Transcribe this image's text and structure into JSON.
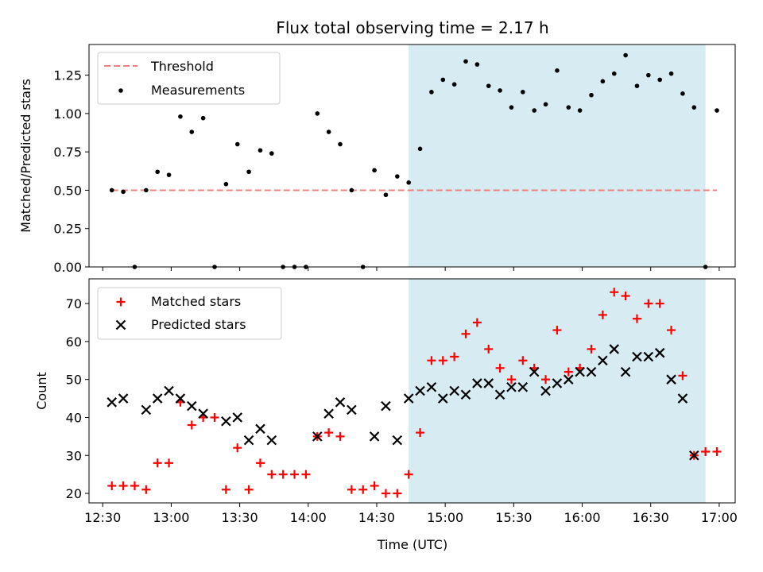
{
  "title": "Flux total observing time = 2.17 h",
  "chart_data": [
    {
      "type": "scatter",
      "ylabel": "Matched/Predicted stars",
      "xlim": [
        "12:24",
        "17:07"
      ],
      "ylim": [
        0,
        1.45
      ],
      "yticks": [
        "0.00",
        "0.25",
        "0.50",
        "0.75",
        "1.00",
        "1.25"
      ],
      "grid": false,
      "legend_position": "upper left",
      "shaded_span": {
        "start": "14:44",
        "end": "16:54",
        "color": "#add8e6"
      },
      "threshold": {
        "name": "Threshold",
        "value": 0.5,
        "x_start": "12:34",
        "x_end": "16:59",
        "color": "#f08080"
      },
      "series": [
        {
          "name": "Measurements",
          "color": "#000000",
          "marker": "dot",
          "x": [
            "12:34",
            "12:39",
            "12:44",
            "12:49",
            "12:54",
            "12:59",
            "13:04",
            "13:09",
            "13:14",
            "13:19",
            "13:24",
            "13:29",
            "13:34",
            "13:39",
            "13:44",
            "13:49",
            "13:54",
            "13:59",
            "14:04",
            "14:09",
            "14:14",
            "14:19",
            "14:24",
            "14:29",
            "14:34",
            "14:39",
            "14:44",
            "14:49",
            "14:54",
            "14:59",
            "15:04",
            "15:09",
            "15:14",
            "15:19",
            "15:24",
            "15:29",
            "15:34",
            "15:39",
            "15:44",
            "15:49",
            "15:54",
            "15:59",
            "16:04",
            "16:09",
            "16:14",
            "16:19",
            "16:24",
            "16:29",
            "16:34",
            "16:39",
            "16:44",
            "16:49",
            "16:54",
            "16:59"
          ],
          "y": [
            0.5,
            0.49,
            0.0,
            0.5,
            0.62,
            0.6,
            0.98,
            0.88,
            0.97,
            0.0,
            0.54,
            0.8,
            0.62,
            0.76,
            0.74,
            0.0,
            0.0,
            0.0,
            1.0,
            0.88,
            0.8,
            0.5,
            0.0,
            0.63,
            0.47,
            0.59,
            0.55,
            0.77,
            1.14,
            1.22,
            1.19,
            1.34,
            1.32,
            1.18,
            1.15,
            1.04,
            1.14,
            1.02,
            1.06,
            1.28,
            1.04,
            1.02,
            1.12,
            1.21,
            1.26,
            1.38,
            1.18,
            1.25,
            1.22,
            1.26,
            1.13,
            1.04,
            0.0,
            1.02
          ]
        }
      ]
    },
    {
      "type": "scatter",
      "xlabel": "Time (UTC)",
      "ylabel": "Count",
      "xlim": [
        "12:24",
        "17:07"
      ],
      "ylim": [
        17.5,
        76.5
      ],
      "yticks": [
        "20",
        "30",
        "40",
        "50",
        "60",
        "70"
      ],
      "xticks": [
        "12:30",
        "13:00",
        "13:30",
        "14:00",
        "14:30",
        "15:00",
        "15:30",
        "16:00",
        "16:30",
        "17:00"
      ],
      "grid": false,
      "legend_position": "upper left",
      "shaded_span": {
        "start": "14:44",
        "end": "16:54",
        "color": "#add8e6"
      },
      "series": [
        {
          "name": "Matched stars",
          "color": "#ff0000",
          "marker": "plus",
          "x": [
            "12:34",
            "12:39",
            "12:44",
            "12:49",
            "12:54",
            "12:59",
            "13:04",
            "13:09",
            "13:14",
            "13:19",
            "13:24",
            "13:29",
            "13:34",
            "13:39",
            "13:44",
            "13:49",
            "13:54",
            "13:59",
            "14:04",
            "14:09",
            "14:14",
            "14:19",
            "14:24",
            "14:29",
            "14:34",
            "14:39",
            "14:44",
            "14:49",
            "14:54",
            "14:59",
            "15:04",
            "15:09",
            "15:14",
            "15:19",
            "15:24",
            "15:29",
            "15:34",
            "15:39",
            "15:44",
            "15:49",
            "15:54",
            "15:59",
            "16:04",
            "16:09",
            "16:14",
            "16:19",
            "16:24",
            "16:29",
            "16:34",
            "16:39",
            "16:44",
            "16:49",
            "16:54",
            "16:59"
          ],
          "y": [
            22,
            22,
            22,
            21,
            28,
            28,
            44,
            38,
            40,
            40,
            21,
            32,
            21,
            28,
            25,
            25,
            25,
            25,
            35,
            36,
            35,
            21,
            21,
            22,
            20,
            20,
            25,
            36,
            55,
            55,
            56,
            62,
            65,
            58,
            53,
            50,
            55,
            53,
            50,
            63,
            52,
            53,
            58,
            67,
            73,
            72,
            66,
            70,
            70,
            63,
            51,
            30,
            31,
            31
          ]
        },
        {
          "name": "Predicted stars",
          "color": "#000000",
          "marker": "cross",
          "x": [
            "12:34",
            "12:39",
            "12:49",
            "12:54",
            "12:59",
            "13:04",
            "13:09",
            "13:14",
            "13:24",
            "13:29",
            "13:34",
            "13:39",
            "13:44",
            "14:04",
            "14:09",
            "14:14",
            "14:19",
            "14:29",
            "14:34",
            "14:39",
            "14:44",
            "14:49",
            "14:54",
            "14:59",
            "15:04",
            "15:09",
            "15:14",
            "15:19",
            "15:24",
            "15:29",
            "15:34",
            "15:39",
            "15:44",
            "15:49",
            "15:54",
            "15:59",
            "16:04",
            "16:09",
            "16:14",
            "16:19",
            "16:24",
            "16:29",
            "16:34",
            "16:39",
            "16:44",
            "16:49"
          ],
          "y": [
            44,
            45,
            42,
            45,
            47,
            45,
            43,
            41,
            39,
            40,
            34,
            37,
            34,
            35,
            41,
            44,
            42,
            35,
            43,
            34,
            45,
            47,
            48,
            45,
            47,
            46,
            49,
            49,
            46,
            48,
            48,
            52,
            47,
            49,
            50,
            52,
            52,
            55,
            58,
            52,
            56,
            56,
            57,
            50,
            45,
            30
          ]
        }
      ]
    }
  ]
}
